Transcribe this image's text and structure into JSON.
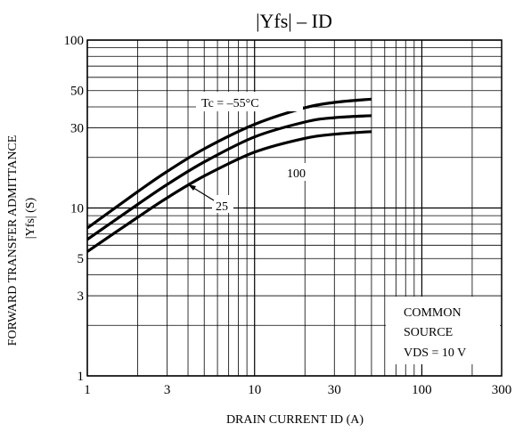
{
  "chart_data": {
    "type": "line",
    "title": "|Yfs| – ID",
    "xlabel": "DRAIN CURRENT  ID  (A)",
    "ylabel_line1": "FORWARD TRANSFER ADMITTANCE",
    "ylabel_line2": "|Yfs|  (S)",
    "xscale": "log",
    "yscale": "log",
    "xlim": [
      1,
      300
    ],
    "ylim": [
      1,
      100
    ],
    "x_ticks": [
      {
        "value": 1,
        "label": "1"
      },
      {
        "value": 3,
        "label": "3"
      },
      {
        "value": 10,
        "label": "10"
      },
      {
        "value": 30,
        "label": "30"
      },
      {
        "value": 100,
        "label": "100"
      },
      {
        "value": 300,
        "label": "300"
      }
    ],
    "y_ticks": [
      {
        "value": 1,
        "label": "1"
      },
      {
        "value": 3,
        "label": "3"
      },
      {
        "value": 5,
        "label": "5"
      },
      {
        "value": 10,
        "label": "10"
      },
      {
        "value": 30,
        "label": "30"
      },
      {
        "value": 50,
        "label": "50"
      },
      {
        "value": 100,
        "label": "100"
      }
    ],
    "grid": true,
    "series": [
      {
        "name": "Tc = –55°C",
        "x": [
          1,
          2,
          3,
          5,
          10,
          20,
          30,
          50
        ],
        "y": [
          7.6,
          12.5,
          16.5,
          22.5,
          31.5,
          39.5,
          42.5,
          44.5
        ]
      },
      {
        "name": "25",
        "x": [
          1,
          2,
          3,
          5,
          10,
          20,
          30,
          50
        ],
        "y": [
          6.5,
          10.5,
          13.8,
          18.8,
          26.5,
          32.5,
          34.5,
          35.5
        ]
      },
      {
        "name": "100",
        "x": [
          1,
          2,
          3,
          5,
          10,
          20,
          30,
          50
        ],
        "y": [
          5.5,
          8.8,
          11.5,
          15.5,
          21.5,
          26,
          27.5,
          28.5
        ]
      }
    ],
    "annotations": {
      "tc_label": "Tc = –55°C",
      "label_25": "25",
      "label_100": "100",
      "condition_line1": "COMMON",
      "condition_line2": "SOURCE",
      "condition_line3": "VDS = 10 V"
    }
  }
}
